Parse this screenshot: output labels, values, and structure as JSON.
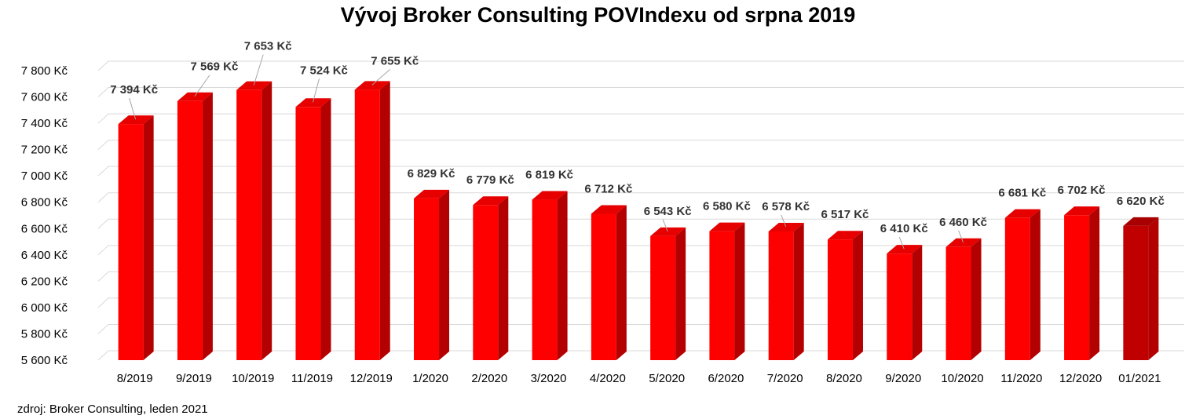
{
  "title": "Vývoj Broker Consulting POVIndexu od srpna 2019",
  "source_note": "zdroj: Broker Consulting, leden 2021",
  "colors": {
    "bar": "#ff0000",
    "bar_side": "#b30000",
    "bar_top": "#e60000",
    "bar_last": "#c00000",
    "grid": "#d9d9d9"
  },
  "chart_data": {
    "type": "bar",
    "title": "Vývoj Broker Consulting POVIndexu od srpna 2019",
    "xlabel": "",
    "ylabel": "",
    "ylim": [
      5600,
      7800
    ],
    "grid": true,
    "categories": [
      "8/2019",
      "9/2019",
      "10/2019",
      "11/2019",
      "12/2019",
      "1/2020",
      "2/2020",
      "3/2020",
      "4/2020",
      "5/2020",
      "6/2020",
      "7/2020",
      "8/2020",
      "9/2020",
      "10/2020",
      "11/2020",
      "12/2020",
      "01/2021"
    ],
    "values": [
      7394,
      7569,
      7653,
      7524,
      7655,
      6829,
      6779,
      6819,
      6712,
      6543,
      6580,
      6578,
      6517,
      6410,
      6460,
      6681,
      6702,
      6620
    ],
    "data_labels": [
      "7 394 Kč",
      "7 569 Kč",
      "7 653 Kč",
      "7 524 Kč",
      "7 655 Kč",
      "6 829 Kč",
      "6 779 Kč",
      "6 819 Kč",
      "6 712 Kč",
      "6 543 Kč",
      "6 580 Kč",
      "6 578 Kč",
      "6 517 Kč",
      "6 410 Kč",
      "6 460 Kč",
      "6 681 Kč",
      "6 702 Kč",
      "6 620 Kč"
    ],
    "y_ticks": [
      5600,
      5800,
      6000,
      6200,
      6400,
      6600,
      6800,
      7000,
      7200,
      7400,
      7600,
      7800
    ],
    "y_tick_labels": [
      "5 600 Kč",
      "5 800 Kč",
      "6 000 Kč",
      "6 200 Kč",
      "6 400 Kč",
      "6 600 Kč",
      "6 800 Kč",
      "7 000 Kč",
      "7 200 Kč",
      "7 400 Kč",
      "7 600 Kč",
      "7 800 Kč"
    ]
  }
}
